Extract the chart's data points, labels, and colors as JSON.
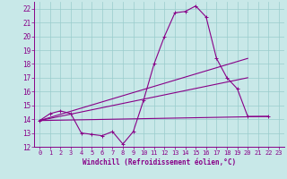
{
  "xlabel": "Windchill (Refroidissement éolien,°C)",
  "bg_color": "#c8e8e8",
  "line_color": "#880088",
  "grid_color": "#99cccc",
  "ylim": [
    12,
    22.5
  ],
  "xlim": [
    -0.5,
    23.5
  ],
  "yticks": [
    12,
    13,
    14,
    15,
    16,
    17,
    18,
    19,
    20,
    21,
    22
  ],
  "xticks": [
    0,
    1,
    2,
    3,
    4,
    5,
    6,
    7,
    8,
    9,
    10,
    11,
    12,
    13,
    14,
    15,
    16,
    17,
    18,
    19,
    20,
    21,
    22,
    23
  ],
  "series_curve": {
    "x": [
      0,
      1,
      2,
      3,
      4,
      5,
      6,
      7,
      8,
      9,
      10,
      11,
      12,
      13,
      14,
      15,
      16,
      17,
      18,
      19,
      20,
      22
    ],
    "y": [
      13.9,
      14.4,
      14.6,
      14.4,
      13.0,
      12.9,
      12.8,
      13.1,
      12.2,
      13.1,
      15.4,
      18.0,
      20.0,
      21.7,
      21.8,
      22.2,
      21.4,
      18.4,
      17.0,
      16.2,
      14.2,
      14.2
    ]
  },
  "series_line1": {
    "x": [
      0,
      20
    ],
    "y": [
      13.9,
      18.4
    ]
  },
  "series_line2": {
    "x": [
      0,
      20
    ],
    "y": [
      13.9,
      17.0
    ]
  },
  "series_line3": {
    "x": [
      0,
      22
    ],
    "y": [
      13.9,
      14.2
    ]
  }
}
